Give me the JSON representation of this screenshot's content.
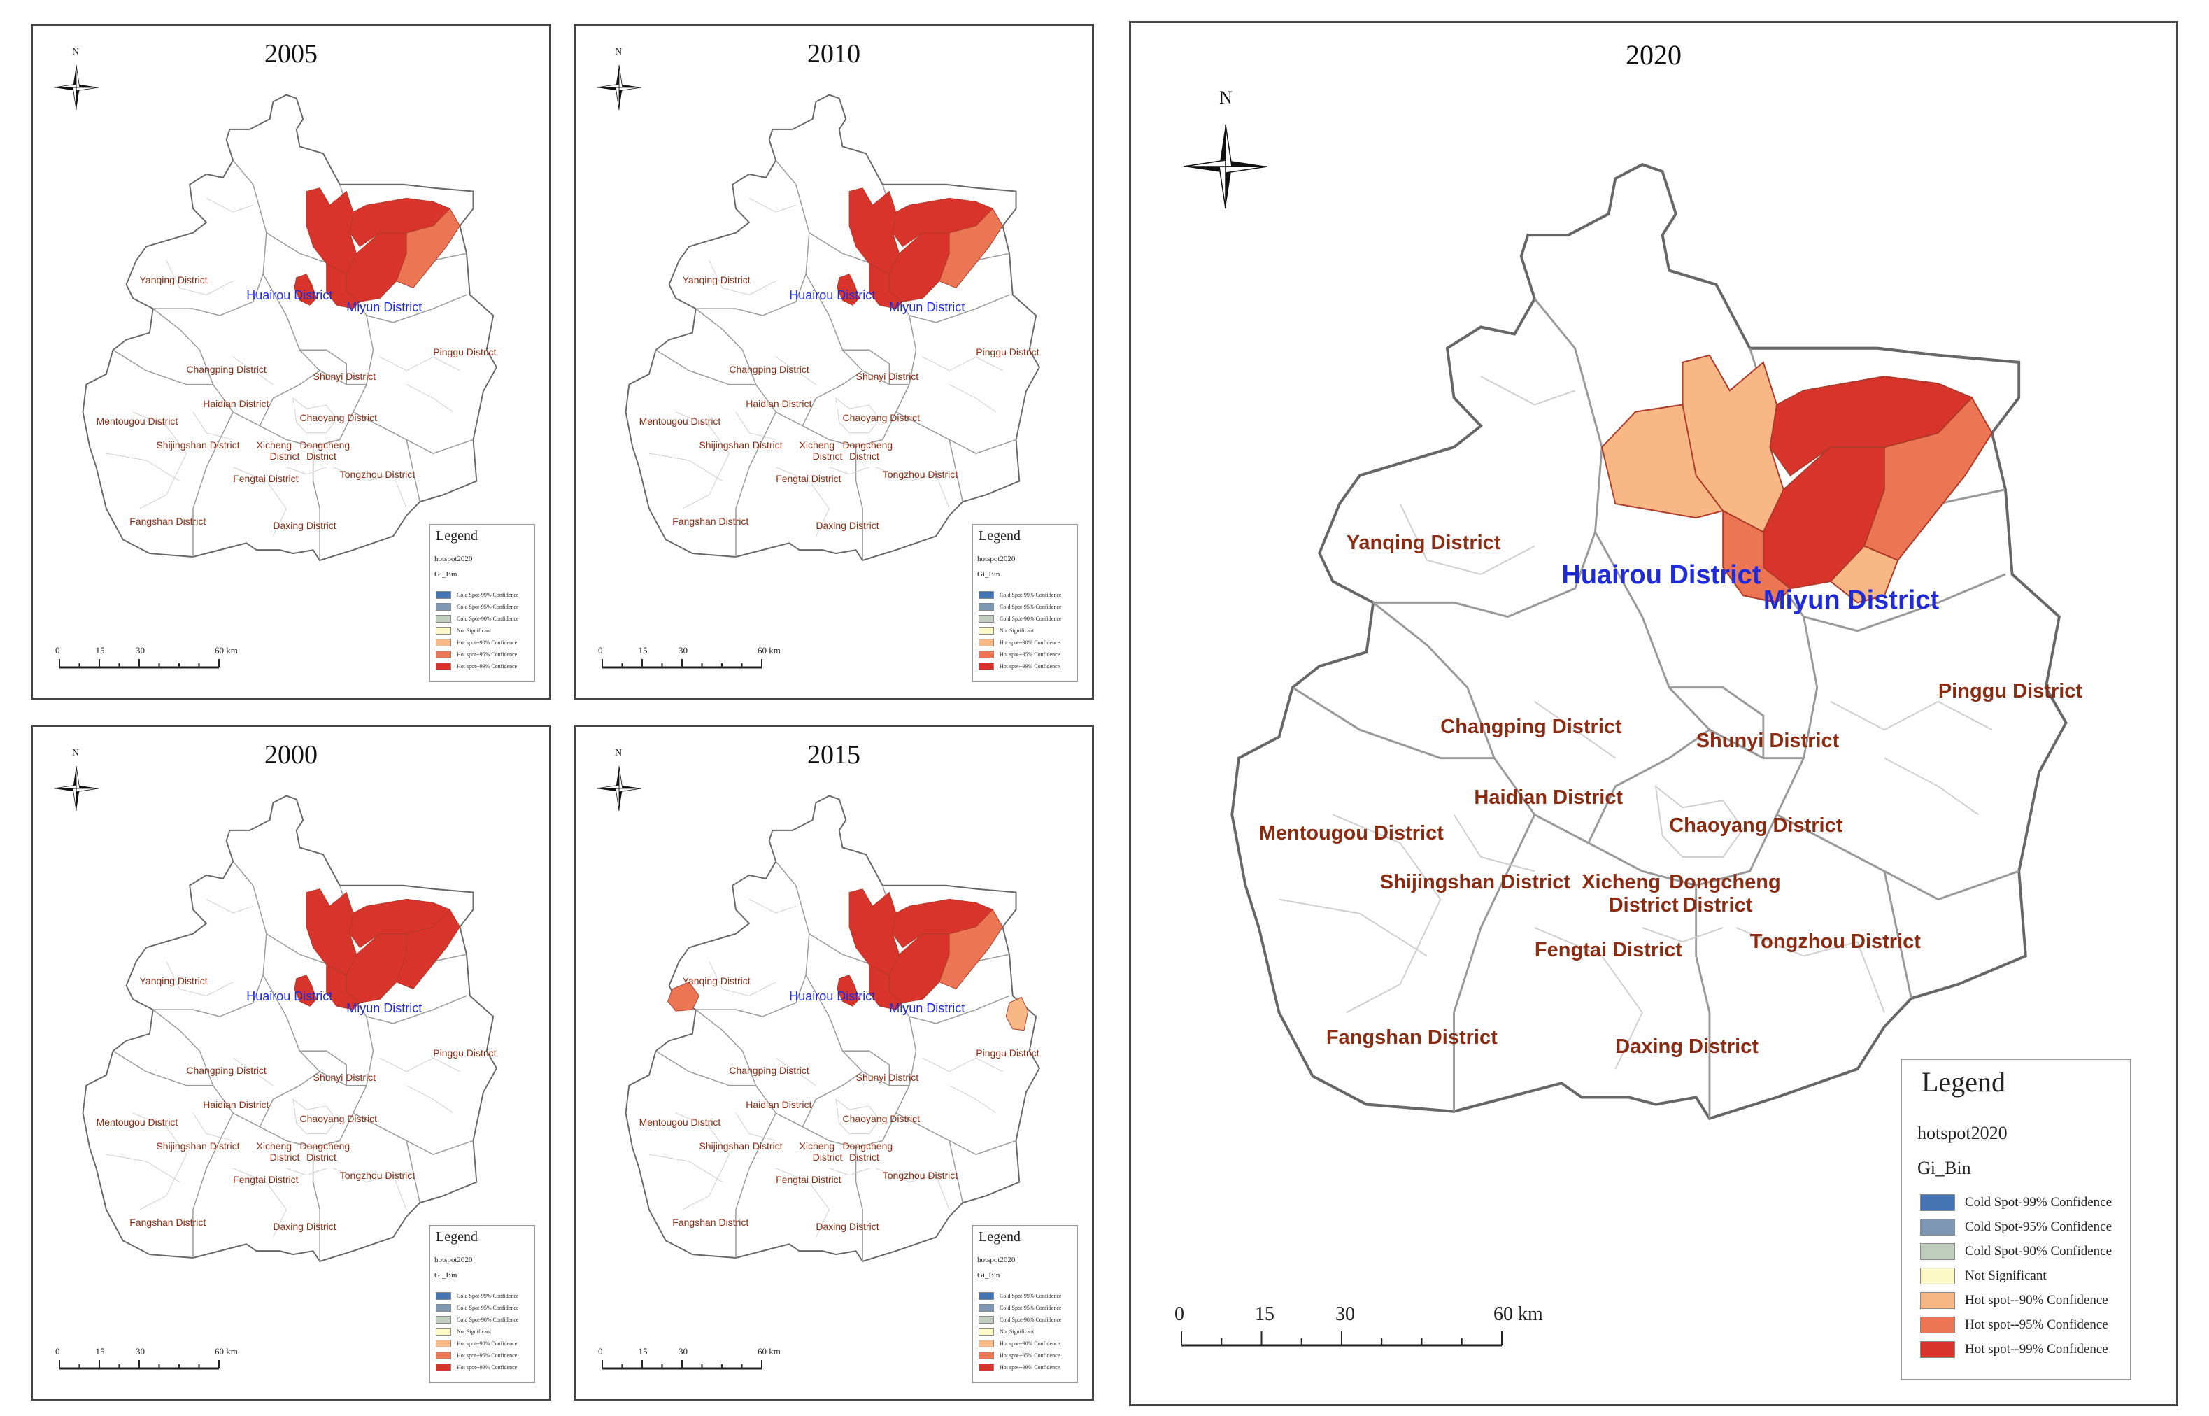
{
  "north_label": "N",
  "legend": {
    "title": "Legend",
    "layer": "hotspot2020",
    "field": "Gi_Bin",
    "items": [
      {
        "label": "Cold Spot-99% Confidence",
        "color": "#4473b4"
      },
      {
        "label": "Cold Spot-95% Confidence",
        "color": "#7e98b4"
      },
      {
        "label": "Cold Spot-90% Confidence",
        "color": "#c0ccbe"
      },
      {
        "label": "Not Significant",
        "color": "#fdf9c7"
      },
      {
        "label": "Hot spot--90% Confidence",
        "color": "#f7b886"
      },
      {
        "label": "Hot spot--95% Confidence",
        "color": "#ec7553"
      },
      {
        "label": "Hot spot--99% Confidence",
        "color": "#d9342b"
      }
    ]
  },
  "scale_labels": [
    "0",
    "15",
    "30",
    "60 km"
  ],
  "districts": {
    "yanqing": "Yanqing District",
    "huairou": "Huairou District",
    "miyun": "Miyun District",
    "pinggu": "Pinggu District",
    "changping": "Changping District",
    "shunyi": "Shunyi District",
    "haidian": "Haidian District",
    "chaoyang": "Chaoyang District",
    "mentougou": "Mentougou District",
    "shijingshan": "Shijingshan District",
    "xicheng_1": "Xicheng",
    "dongcheng_1": "Dongcheng",
    "xicheng_2": "District",
    "dongcheng_2": "District",
    "fengtai": "Fengtai District",
    "tongzhou": "Tongzhou District",
    "fangshan": "Fangshan District",
    "daxing": "Daxing District"
  },
  "panels": [
    {
      "id": "p2005",
      "title": "2005"
    },
    {
      "id": "p2010",
      "title": "2010"
    },
    {
      "id": "p2000",
      "title": "2000"
    },
    {
      "id": "p2015",
      "title": "2015"
    },
    {
      "id": "p2020",
      "title": "2020"
    }
  ]
}
